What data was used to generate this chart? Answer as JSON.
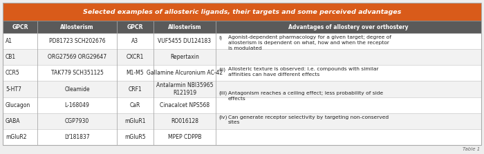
{
  "title": "Selected examples of allosteric ligands, their targets and some perceived advantages",
  "title_bg": "#D95B1A",
  "title_color": "#FFFFFF",
  "header_bg": "#5A5A5A",
  "header_color": "#FFFFFF",
  "row_bg_even": "#FFFFFF",
  "row_bg_odd": "#F2F2F2",
  "bg_color": "#EEEEEE",
  "border_color": "#AAAAAA",
  "text_color": "#222222",
  "col_headers": [
    "GPCR",
    "Allosterism",
    "GPCR",
    "Allosterism",
    "Advantages of allostery over orthostery"
  ],
  "rows": [
    [
      "A1",
      "PD81723 SCH202676",
      "A3",
      "VUF5455 DU124183"
    ],
    [
      "CB1",
      "ORG27569 ORG29647",
      "CXCR1",
      "Repertaxin"
    ],
    [
      "CCR5",
      "TAK779 SCH351125",
      "M1-M5",
      "Gallamine Alcuronium AC-42"
    ],
    [
      "5-HT7",
      "Oleamide",
      "CRF1",
      "Antalarmin NBI35965\nR121919"
    ],
    [
      "Glucagon",
      "L-168049",
      "CaR",
      "Cinacalcet NPS568"
    ],
    [
      "GABA",
      "CGP7930",
      "mGluR1",
      "RO016128"
    ],
    [
      "mGluR2",
      "LY181837",
      "mGluR5",
      "MPEP CDPPB"
    ]
  ],
  "adv_bullets": [
    "i)",
    "(ii)",
    "(iii)",
    "(iv)"
  ],
  "adv_texts": [
    "Agonist-dependent pharmacology for a given target; degree of\nallosterism is dependent on what, how and when the receptor\nis modulated",
    "Allosteric texture is observed: i.e. compounds with similar\naffinities can have different effects",
    "Antagonism reaches a ceiling effect; less probability of side\neffects",
    "Can generate receptor selectivity by targeting non-conserved\nsites"
  ],
  "footer": "Table 1"
}
